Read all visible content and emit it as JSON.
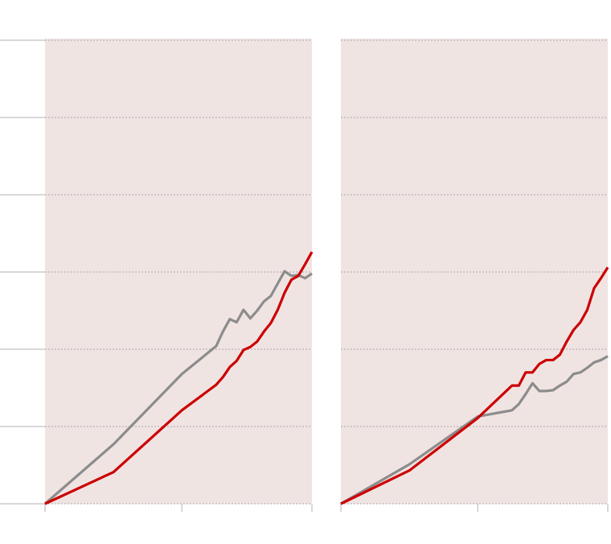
{
  "chart_data": [
    {
      "type": "line",
      "x": [
        0,
        10,
        20,
        25,
        26,
        27,
        28,
        29,
        30,
        31,
        32,
        33,
        34,
        35,
        36,
        37,
        38,
        39
      ],
      "series": [
        {
          "color": "#8c8c8c",
          "values": [
            0,
            0.77,
            1.68,
            2.04,
            2.23,
            2.39,
            2.35,
            2.51,
            2.4,
            2.5,
            2.62,
            2.69,
            2.85,
            3.01,
            2.95,
            2.96,
            2.92,
            2.98
          ]
        },
        {
          "color": "#cc0000",
          "values": [
            0,
            0.41,
            1.21,
            1.54,
            1.64,
            1.77,
            1.85,
            1.99,
            2.03,
            2.1,
            2.23,
            2.34,
            2.51,
            2.73,
            2.9,
            2.95,
            3.1,
            3.26
          ]
        }
      ],
      "xlim": [
        0,
        39
      ],
      "xticks": [
        0,
        20,
        39
      ],
      "ylim": [
        0,
        6
      ],
      "yticks": [
        0,
        1,
        2,
        3,
        4,
        5,
        6
      ],
      "grid": true,
      "background": "#f0e4e3"
    },
    {
      "type": "line",
      "x": [
        0,
        10,
        20,
        25,
        26,
        27,
        28,
        29,
        30,
        31,
        32,
        33,
        34,
        35,
        36,
        37,
        38,
        39
      ],
      "series": [
        {
          "color": "#8c8c8c",
          "values": [
            0,
            0.51,
            1.13,
            1.21,
            1.29,
            1.42,
            1.56,
            1.46,
            1.46,
            1.47,
            1.53,
            1.58,
            1.68,
            1.7,
            1.76,
            1.83,
            1.86,
            1.91
          ]
        },
        {
          "color": "#cc0000",
          "values": [
            0,
            0.43,
            1.11,
            1.53,
            1.53,
            1.7,
            1.7,
            1.81,
            1.86,
            1.86,
            1.93,
            2.1,
            2.25,
            2.35,
            2.51,
            2.79,
            2.92,
            3.06
          ]
        }
      ],
      "xlim": [
        0,
        39
      ],
      "xticks": [
        0,
        20,
        39
      ],
      "ylim": [
        0,
        6
      ],
      "yticks": [
        0,
        1,
        2,
        3,
        4,
        5,
        6
      ],
      "grid": true,
      "background": "#f0e4e3"
    }
  ]
}
